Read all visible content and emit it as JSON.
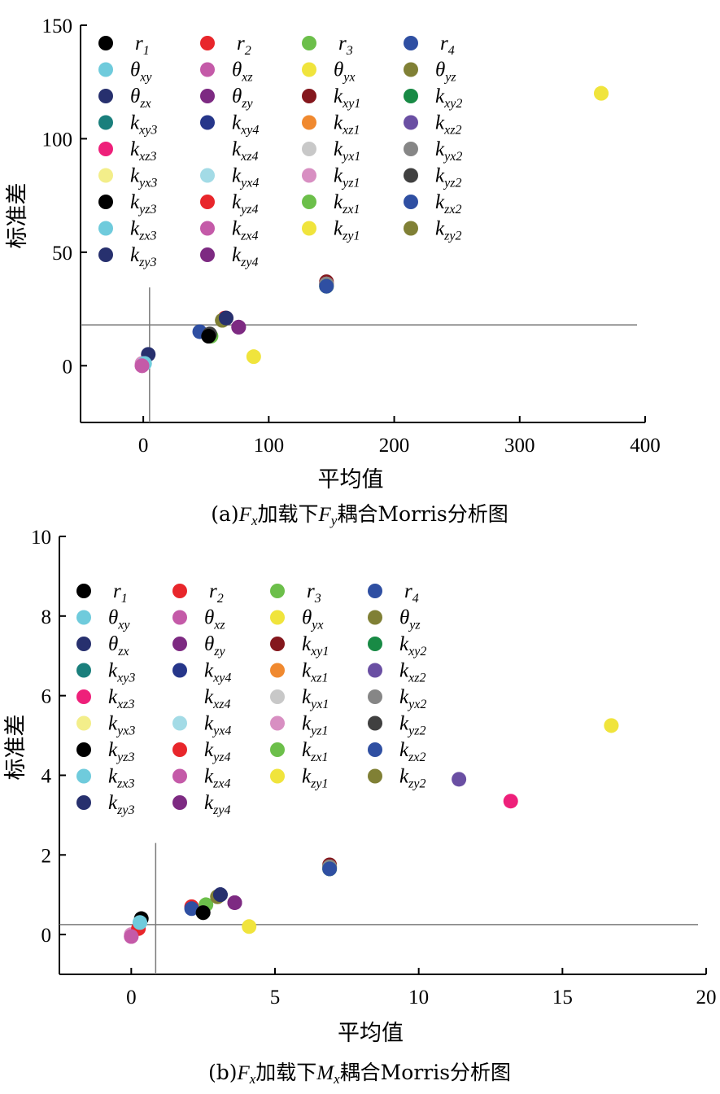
{
  "chart_data": [
    {
      "type": "scatter",
      "caption": "(a)Fx加载下Fy耦合Morris分析图",
      "caption_parts": {
        "pre": "(a)",
        "f1": "F",
        "f1_sub": "x",
        "mid": "加载下",
        "f2": "F",
        "f2_sub": "y",
        "post": "耦合Morris分析图"
      },
      "xlabel": "平均值",
      "ylabel": "标准差",
      "xlim": [
        -50,
        400
      ],
      "ylim": [
        -25,
        150
      ],
      "xticks": [
        0,
        100,
        200,
        300,
        400
      ],
      "yticks": [
        0,
        50,
        100,
        150
      ],
      "grid": false,
      "legend_position": "top-left",
      "reference_lines": {
        "x": 5,
        "y": 18
      },
      "points": [
        {
          "name": "r1",
          "x": 53,
          "y": 13
        },
        {
          "name": "r2",
          "x": 66,
          "y": 21
        },
        {
          "name": "r3",
          "x": 54,
          "y": 13
        },
        {
          "name": "r4",
          "x": 45,
          "y": 15
        },
        {
          "name": "θxy",
          "x": 1,
          "y": 1
        },
        {
          "name": "θxz",
          "x": -1,
          "y": 0
        },
        {
          "name": "θyx",
          "x": 88,
          "y": 4
        },
        {
          "name": "θyz",
          "x": 63,
          "y": 20
        },
        {
          "name": "θzx",
          "x": 4,
          "y": 5
        },
        {
          "name": "θzy",
          "x": 76,
          "y": 17
        },
        {
          "name": "kxy1",
          "x": 146,
          "y": 37
        },
        {
          "name": "kxy2",
          "x": 146,
          "y": 35
        },
        {
          "name": "kxy3",
          "x": 146,
          "y": 36
        },
        {
          "name": "kxy4",
          "x": 66,
          "y": 21
        },
        {
          "name": "kxz1",
          "x": 146,
          "y": 36
        },
        {
          "name": "kxz2",
          "x": 146,
          "y": 36
        },
        {
          "name": "kxz3",
          "x": 146,
          "y": 36
        },
        {
          "name": "kxz4",
          "x": 146,
          "y": 36
        },
        {
          "name": "kyx1",
          "x": 146,
          "y": 36
        },
        {
          "name": "kyx2",
          "x": 146,
          "y": 36
        },
        {
          "name": "kyx3",
          "x": 365,
          "y": 120
        },
        {
          "name": "kyx4",
          "x": 1,
          "y": 1
        },
        {
          "name": "kyz1",
          "x": -1,
          "y": 1
        },
        {
          "name": "kyz2",
          "x": 53,
          "y": 14
        },
        {
          "name": "kyz3",
          "x": 52,
          "y": 13
        },
        {
          "name": "kyz4",
          "x": 65,
          "y": 21
        },
        {
          "name": "kzx1",
          "x": 146,
          "y": 35
        },
        {
          "name": "kzx2",
          "x": 146,
          "y": 35
        },
        {
          "name": "kzx3",
          "x": 1,
          "y": 1
        },
        {
          "name": "kzx4",
          "x": -1,
          "y": 0
        },
        {
          "name": "kzy1",
          "x": 365,
          "y": 120
        },
        {
          "name": "kzy2",
          "x": 63,
          "y": 20
        },
        {
          "name": "kzy3",
          "x": 66,
          "y": 21
        },
        {
          "name": "kzy4",
          "x": 76,
          "y": 17
        }
      ]
    },
    {
      "type": "scatter",
      "caption": "(b)Fx加载下Mx耦合Morris分析图",
      "caption_parts": {
        "pre": "(b)",
        "f1": "F",
        "f1_sub": "x",
        "mid": "加载下",
        "f2": "M",
        "f2_sub": "x",
        "post": "耦合Morris分析图"
      },
      "xlabel": "平均值",
      "ylabel": "标准差",
      "xlim": [
        -2.5,
        20
      ],
      "ylim": [
        -1,
        10
      ],
      "xticks": [
        0,
        5,
        10,
        15,
        20
      ],
      "yticks": [
        0,
        2,
        4,
        6,
        8,
        10
      ],
      "grid": false,
      "legend_position": "top-left",
      "reference_lines": {
        "x": 0.85,
        "y": 0.25
      },
      "points": [
        {
          "name": "r1",
          "x": 0.35,
          "y": 0.4
        },
        {
          "name": "r2",
          "x": 2.1,
          "y": 0.7
        },
        {
          "name": "r3",
          "x": 2.6,
          "y": 0.75
        },
        {
          "name": "r4",
          "x": 2.1,
          "y": 0.65
        },
        {
          "name": "θxy",
          "x": 0.3,
          "y": 0.3
        },
        {
          "name": "θxz",
          "x": 0.0,
          "y": -0.05
        },
        {
          "name": "θyx",
          "x": 4.1,
          "y": 0.2
        },
        {
          "name": "θyz",
          "x": 3.0,
          "y": 0.95
        },
        {
          "name": "θzx",
          "x": 3.1,
          "y": 1.0
        },
        {
          "name": "θzy",
          "x": 3.6,
          "y": 0.8
        },
        {
          "name": "kxy1",
          "x": 6.9,
          "y": 1.75
        },
        {
          "name": "kxy2",
          "x": 6.9,
          "y": 1.65
        },
        {
          "name": "kxy3",
          "x": 6.9,
          "y": 1.7
        },
        {
          "name": "kxy4",
          "x": 3.1,
          "y": 1.0
        },
        {
          "name": "kxz1",
          "x": 6.9,
          "y": 1.7
        },
        {
          "name": "kxz2",
          "x": 11.4,
          "y": 3.9
        },
        {
          "name": "kxz3",
          "x": 13.2,
          "y": 3.35
        },
        {
          "name": "kxz4",
          "x": 6.9,
          "y": 1.7
        },
        {
          "name": "kyx1",
          "x": 6.9,
          "y": 1.7
        },
        {
          "name": "kyx2",
          "x": 6.9,
          "y": 1.7
        },
        {
          "name": "kyx3",
          "x": 16.7,
          "y": 5.25
        },
        {
          "name": "kyx4",
          "x": 0.3,
          "y": 0.3
        },
        {
          "name": "kyz1",
          "x": 0.0,
          "y": 0.0
        },
        {
          "name": "kyz2",
          "x": 2.5,
          "y": 0.55
        },
        {
          "name": "kyz3",
          "x": 2.5,
          "y": 0.55
        },
        {
          "name": "kyz4",
          "x": 0.25,
          "y": 0.15
        },
        {
          "name": "kzx1",
          "x": 6.9,
          "y": 1.65
        },
        {
          "name": "kzx2",
          "x": 6.9,
          "y": 1.65
        },
        {
          "name": "kzx3",
          "x": 0.3,
          "y": 0.3
        },
        {
          "name": "kzx4",
          "x": 0.0,
          "y": -0.05
        },
        {
          "name": "kzy1",
          "x": 16.7,
          "y": 5.25
        },
        {
          "name": "kzy2",
          "x": 3.0,
          "y": 0.95
        },
        {
          "name": "kzy3",
          "x": 3.1,
          "y": 1.0
        },
        {
          "name": "kzy4",
          "x": 3.6,
          "y": 0.8
        }
      ]
    }
  ],
  "legend_items": [
    {
      "main": "r",
      "sub": "1",
      "color": "#000000"
    },
    {
      "main": "r",
      "sub": "2",
      "color": "#e8262b"
    },
    {
      "main": "r",
      "sub": "3",
      "color": "#6cbf4a"
    },
    {
      "main": "r",
      "sub": "4",
      "color": "#2f4fa2"
    },
    {
      "main": "θ",
      "sub": "xy",
      "color": "#6fcbdc"
    },
    {
      "main": "θ",
      "sub": "xz",
      "color": "#c45aa8"
    },
    {
      "main": "θ",
      "sub": "yx",
      "color": "#f0e43c"
    },
    {
      "main": "θ",
      "sub": "yz",
      "color": "#808035"
    },
    {
      "main": "θ",
      "sub": "zx",
      "color": "#27306e"
    },
    {
      "main": "θ",
      "sub": "zy",
      "color": "#7d2a82"
    },
    {
      "main": "k",
      "sub": "xy1",
      "color": "#84171d"
    },
    {
      "main": "k",
      "sub": "xy2",
      "color": "#188a45"
    },
    {
      "main": "k",
      "sub": "xy3",
      "color": "#1a7f7c"
    },
    {
      "main": "k",
      "sub": "xy4",
      "color": "#26368a"
    },
    {
      "main": "k",
      "sub": "xz1",
      "color": "#f0892f"
    },
    {
      "main": "k",
      "sub": "xz2",
      "color": "#6a4fa3"
    },
    {
      "main": "k",
      "sub": "xz3",
      "color": "#ee207a"
    },
    {
      "main": "k",
      "sub": "xz4",
      "color": "#ffffff"
    },
    {
      "main": "k",
      "sub": "yx1",
      "color": "#c8c8c8"
    },
    {
      "main": "k",
      "sub": "yx2",
      "color": "#868686"
    },
    {
      "main": "k",
      "sub": "yx3",
      "color": "#f3ee8a"
    },
    {
      "main": "k",
      "sub": "yx4",
      "color": "#a3dbe6"
    },
    {
      "main": "k",
      "sub": "yz1",
      "color": "#d88fc2"
    },
    {
      "main": "k",
      "sub": "yz2",
      "color": "#404040"
    },
    {
      "main": "k",
      "sub": "yz3",
      "color": "#000000"
    },
    {
      "main": "k",
      "sub": "yz4",
      "color": "#e8262b"
    },
    {
      "main": "k",
      "sub": "zx1",
      "color": "#6cbf4a"
    },
    {
      "main": "k",
      "sub": "zx2",
      "color": "#2f4fa2"
    },
    {
      "main": "k",
      "sub": "zx3",
      "color": "#6fcbdc"
    },
    {
      "main": "k",
      "sub": "zx4",
      "color": "#c45aa8"
    },
    {
      "main": "k",
      "sub": "zy1",
      "color": "#f0e43c"
    },
    {
      "main": "k",
      "sub": "zy2",
      "color": "#808035"
    },
    {
      "main": "k",
      "sub": "zy3",
      "color": "#27306e"
    },
    {
      "main": "k",
      "sub": "zy4",
      "color": "#7d2a82"
    }
  ]
}
